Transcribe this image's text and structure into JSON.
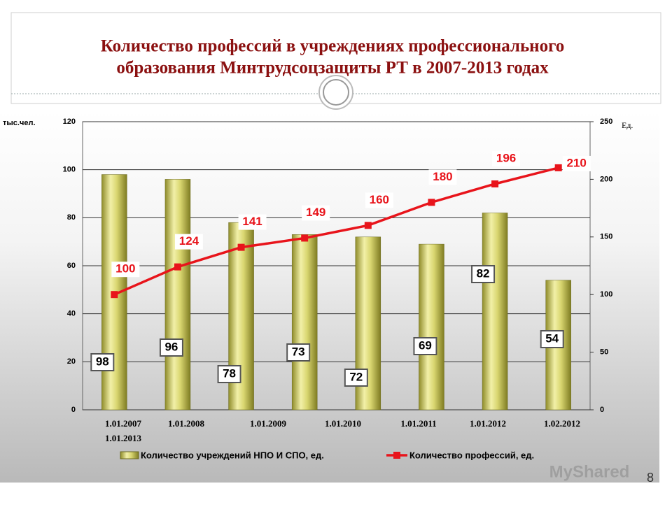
{
  "chart_data": {
    "type": "bar_line",
    "title": [
      "Количество профессий в учреждениях профессионального",
      "образования Минтрудсоцзащиты РТ в 2007-2013 годах"
    ],
    "y_label": "тыс.чел.",
    "y2_label": "Ед.",
    "categories": [
      "1.01.2007",
      "1.01.2008",
      "1.01.2009",
      "1.01.2010",
      "1.01.2011",
      "1.01.2012",
      "1.02.2012",
      "1.01.2013"
    ],
    "series": [
      {
        "name": "Количество учреждений НПО И СПО, ед.",
        "type": "bar",
        "color": "#c9c65a",
        "values": [
          98,
          96,
          78,
          73,
          72,
          69,
          82,
          54
        ]
      },
      {
        "name": "Количество профессий, ед.",
        "type": "line",
        "axis": "y2",
        "color": "#e8141b",
        "values": [
          100,
          124,
          141,
          149,
          160,
          180,
          196,
          210
        ]
      }
    ],
    "ylim": [
      0,
      120
    ],
    "yticks": [
      0,
      20,
      40,
      60,
      80,
      100,
      120
    ],
    "y2lim": [
      0,
      250
    ],
    "y2ticks": [
      0,
      50,
      100,
      150,
      200,
      250
    ],
    "grid": true,
    "watermark": "MyShared",
    "page_number": "8"
  }
}
